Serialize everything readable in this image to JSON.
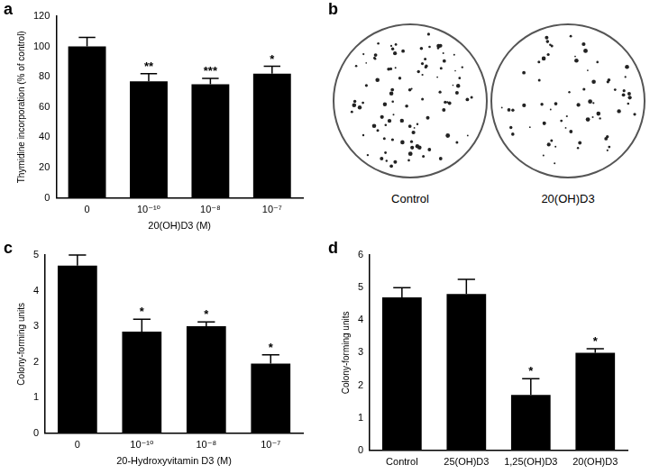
{
  "chart_data": [
    {
      "panel": "a",
      "type": "bar",
      "categories": [
        "0",
        "10⁻¹⁰",
        "10⁻⁸",
        "10⁻⁷"
      ],
      "values": [
        100,
        77,
        75,
        82
      ],
      "errors": [
        6,
        5,
        4,
        5
      ],
      "annotations": [
        null,
        "**",
        "***",
        "*"
      ],
      "x_label": "20(OH)D3 (M)",
      "y_label": "Thymidine incorporation (% of control)",
      "color": "#000000",
      "ylim": [
        0,
        120
      ],
      "yticks": [
        0,
        20,
        40,
        60,
        80,
        100,
        120
      ],
      "grid": false
    },
    {
      "panel": "c",
      "type": "bar",
      "categories": [
        "0",
        "10⁻¹⁰",
        "10⁻⁸",
        "10⁻⁷"
      ],
      "values": [
        4.7,
        2.85,
        3.0,
        1.95
      ],
      "errors": [
        0.3,
        0.35,
        0.12,
        0.25
      ],
      "annotations": [
        null,
        "*",
        "*",
        "*"
      ],
      "x_label": "20-Hydroxyvitamin D3 (M)",
      "y_label": "Colony-forming units",
      "color": "#000000",
      "ylim": [
        0,
        5
      ],
      "yticks": [
        0,
        1,
        2,
        3,
        4,
        5
      ],
      "grid": false
    },
    {
      "panel": "d",
      "type": "bar",
      "categories": [
        "Control",
        "25(OH)D3",
        "1,25(OH)D3",
        "20(OH)D3"
      ],
      "values": [
        4.7,
        4.8,
        1.7,
        3.0
      ],
      "errors": [
        0.3,
        0.45,
        0.5,
        0.12
      ],
      "annotations": [
        null,
        null,
        "*",
        "*"
      ],
      "y_label": "Colony-forming units",
      "color": "#000000",
      "ylim": [
        0,
        6
      ],
      "yticks": [
        0,
        1,
        2,
        3,
        4,
        5,
        6
      ],
      "grid": false
    }
  ],
  "images": {
    "panel": "b",
    "labels": [
      "Control",
      "20(OH)D3"
    ]
  }
}
